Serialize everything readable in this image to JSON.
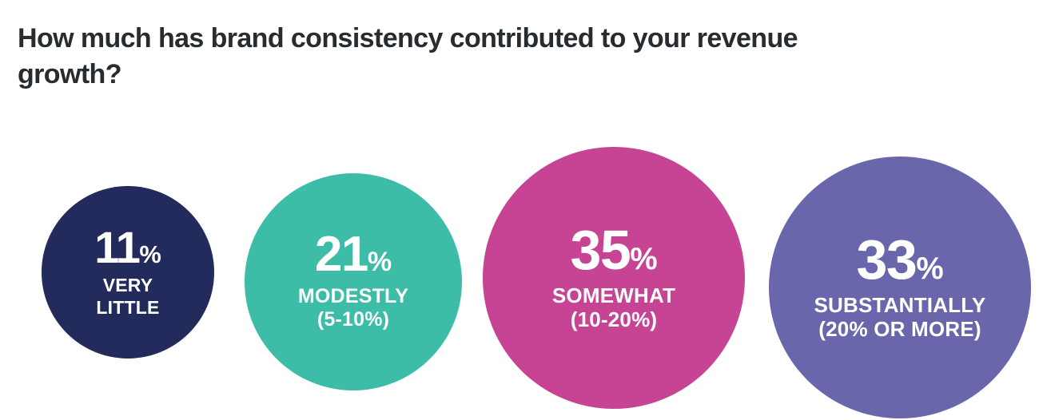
{
  "page": {
    "title": "How much has brand consistency contributed to your revenue growth?",
    "title_lines": [
      "How much has brand consistency contributed to your revenue",
      "growth?"
    ]
  },
  "chart_data": {
    "type": "bubble",
    "title": "How much has brand consistency contributed to your revenue growth?",
    "unit": "%",
    "categories": [
      "Very little",
      "Modestly (5-10%)",
      "Somewhat (10-20%)",
      "Substantially (20% or more)"
    ],
    "values": [
      11,
      21,
      35,
      33
    ],
    "legend": "none",
    "axes": "none",
    "layout_hint": "four proportional circles in a row, area encodes percentage, labels inside circles",
    "points": [
      {
        "value": 11,
        "label_lines": [
          "VERY",
          "LITTLE"
        ],
        "color": "#232a5c"
      },
      {
        "value": 21,
        "label_lines": [
          "MODESTLY",
          "(5-10%)"
        ],
        "color": "#3dbda7"
      },
      {
        "value": 35,
        "label_lines": [
          "SOMEWHAT",
          "(10-20%)"
        ],
        "color": "#c64493"
      },
      {
        "value": 33,
        "label_lines": [
          "SUBSTANTIALLY",
          "(20% OR MORE)"
        ],
        "color": "#6a66ac"
      }
    ],
    "text_color_inside_bubbles": "#ffffff",
    "title_color": "#272c30",
    "background_color": "#ffffff"
  }
}
